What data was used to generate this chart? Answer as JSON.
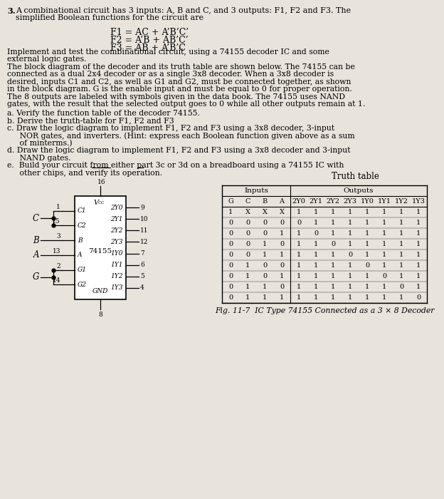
{
  "bg_color": "#e8e4dc",
  "truth_table_title": "Truth table",
  "truth_table_inputs": [
    "G",
    "C",
    "B",
    "A"
  ],
  "truth_table_outputs": [
    "2Y0",
    "2Y1",
    "2Y2",
    "2Y3",
    "1Y0",
    "1Y1",
    "1Y2",
    "1Y3"
  ],
  "truth_table_data": [
    [
      "1",
      "X",
      "X",
      "X",
      "1",
      "1",
      "1",
      "1",
      "1",
      "1",
      "1",
      "1"
    ],
    [
      "0",
      "0",
      "0",
      "0",
      "0",
      "1",
      "1",
      "1",
      "1",
      "1",
      "1",
      "1"
    ],
    [
      "0",
      "0",
      "0",
      "1",
      "1",
      "0",
      "1",
      "1",
      "1",
      "1",
      "1",
      "1"
    ],
    [
      "0",
      "0",
      "1",
      "0",
      "1",
      "1",
      "0",
      "1",
      "1",
      "1",
      "1",
      "1"
    ],
    [
      "0",
      "0",
      "1",
      "1",
      "1",
      "1",
      "1",
      "0",
      "1",
      "1",
      "1",
      "1"
    ],
    [
      "0",
      "1",
      "0",
      "0",
      "1",
      "1",
      "1",
      "1",
      "0",
      "1",
      "1",
      "1"
    ],
    [
      "0",
      "1",
      "0",
      "1",
      "1",
      "1",
      "1",
      "1",
      "1",
      "0",
      "1",
      "1"
    ],
    [
      "0",
      "1",
      "1",
      "0",
      "1",
      "1",
      "1",
      "1",
      "1",
      "1",
      "0",
      "1"
    ],
    [
      "0",
      "1",
      "1",
      "1",
      "1",
      "1",
      "1",
      "1",
      "1",
      "1",
      "1",
      "0"
    ]
  ],
  "fig_caption": "Fig. 11-7  IC Type 74155 Connected as a 3 × 8 Decoder"
}
